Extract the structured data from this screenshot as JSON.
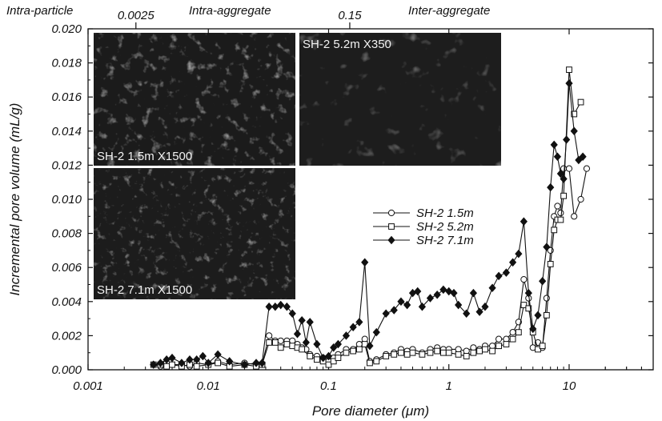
{
  "chart_data": {
    "type": "line",
    "x_scale": "log",
    "xlabel": "Pore diameter (μm)",
    "ylabel": "Incremental pore volume (mL/g)",
    "xlim": [
      0.001,
      50
    ],
    "ylim": [
      0,
      0.02
    ],
    "x_ticks": [
      0.001,
      0.01,
      0.1,
      1,
      10
    ],
    "x_tick_labels": [
      "0.001",
      "0.01",
      "0.1",
      "1",
      "10"
    ],
    "y_ticks": [
      0,
      0.002,
      0.004,
      0.006,
      0.008,
      0.01,
      0.012,
      0.014,
      0.016,
      0.018,
      0.02
    ],
    "y_tick_labels": [
      "0.000",
      "0.002",
      "0.004",
      "0.006",
      "0.008",
      "0.010",
      "0.012",
      "0.014",
      "0.016",
      "0.018",
      "0.020"
    ],
    "grid": false,
    "legend_position": "center-right",
    "top_axis": {
      "ticks": [
        0.0025,
        0.15
      ],
      "tick_labels": [
        "0.0025",
        "0.15"
      ],
      "regions": [
        "Intra-particle",
        "Intra-aggregate",
        "Inter-aggregate"
      ]
    },
    "insets": [
      {
        "label": "SH-2 1.5m X1500"
      },
      {
        "label": "SH-2 5.2m X350"
      },
      {
        "label": "SH-2 7.1m X1500"
      }
    ],
    "series": [
      {
        "name": "SH-2 1.5m",
        "marker": "open-circle",
        "points": [
          [
            0.0035,
            0.0003
          ],
          [
            0.004,
            0.0002
          ],
          [
            0.0045,
            0.0004
          ],
          [
            0.005,
            0.0003
          ],
          [
            0.006,
            0.0003
          ],
          [
            0.007,
            0.0002
          ],
          [
            0.008,
            0.0004
          ],
          [
            0.01,
            0.0003
          ],
          [
            0.012,
            0.0005
          ],
          [
            0.015,
            0.0003
          ],
          [
            0.02,
            0.0004
          ],
          [
            0.025,
            0.0003
          ],
          [
            0.028,
            0.0003
          ],
          [
            0.032,
            0.002
          ],
          [
            0.036,
            0.0017
          ],
          [
            0.04,
            0.0017
          ],
          [
            0.045,
            0.0017
          ],
          [
            0.05,
            0.0017
          ],
          [
            0.055,
            0.0015
          ],
          [
            0.06,
            0.0013
          ],
          [
            0.065,
            0.0012
          ],
          [
            0.07,
            0.0009
          ],
          [
            0.08,
            0.0008
          ],
          [
            0.09,
            0.0007
          ],
          [
            0.1,
            0.0005
          ],
          [
            0.11,
            0.0007
          ],
          [
            0.12,
            0.0009
          ],
          [
            0.14,
            0.0012
          ],
          [
            0.16,
            0.0012
          ],
          [
            0.18,
            0.0015
          ],
          [
            0.2,
            0.0018
          ],
          [
            0.22,
            0.0005
          ],
          [
            0.25,
            0.0006
          ],
          [
            0.3,
            0.0009
          ],
          [
            0.35,
            0.001
          ],
          [
            0.4,
            0.0012
          ],
          [
            0.45,
            0.0011
          ],
          [
            0.5,
            0.0012
          ],
          [
            0.6,
            0.001
          ],
          [
            0.7,
            0.0012
          ],
          [
            0.8,
            0.0013
          ],
          [
            0.9,
            0.0012
          ],
          [
            1.0,
            0.0012
          ],
          [
            1.2,
            0.0012
          ],
          [
            1.4,
            0.0011
          ],
          [
            1.6,
            0.0013
          ],
          [
            1.8,
            0.0012
          ],
          [
            2.0,
            0.0014
          ],
          [
            2.3,
            0.0014
          ],
          [
            2.6,
            0.0018
          ],
          [
            3.0,
            0.0018
          ],
          [
            3.4,
            0.0022
          ],
          [
            3.8,
            0.0028
          ],
          [
            4.2,
            0.0053
          ],
          [
            4.6,
            0.0042
          ],
          [
            5.0,
            0.0013
          ],
          [
            5.5,
            0.0016
          ],
          [
            6.0,
            0.0013
          ],
          [
            6.5,
            0.0042
          ],
          [
            7.0,
            0.007
          ],
          [
            7.5,
            0.009
          ],
          [
            8.0,
            0.0096
          ],
          [
            8.5,
            0.0092
          ],
          [
            9.0,
            0.0118
          ],
          [
            10.0,
            0.0118
          ],
          [
            11.0,
            0.009
          ],
          [
            12.5,
            0.01
          ],
          [
            14.0,
            0.0118
          ]
        ]
      },
      {
        "name": "SH-2 5.2m",
        "marker": "open-square",
        "points": [
          [
            0.0035,
            0.0003
          ],
          [
            0.004,
            0.0003
          ],
          [
            0.0045,
            0.0002
          ],
          [
            0.005,
            0.0003
          ],
          [
            0.006,
            0.0002
          ],
          [
            0.007,
            0.0003
          ],
          [
            0.008,
            0.0002
          ],
          [
            0.01,
            0.0003
          ],
          [
            0.012,
            0.0004
          ],
          [
            0.015,
            0.0002
          ],
          [
            0.02,
            0.0003
          ],
          [
            0.025,
            0.0002
          ],
          [
            0.028,
            0.0003
          ],
          [
            0.032,
            0.0016
          ],
          [
            0.036,
            0.0016
          ],
          [
            0.04,
            0.0013
          ],
          [
            0.045,
            0.0015
          ],
          [
            0.05,
            0.0014
          ],
          [
            0.055,
            0.0013
          ],
          [
            0.06,
            0.0012
          ],
          [
            0.07,
            0.0008
          ],
          [
            0.08,
            0.0006
          ],
          [
            0.09,
            0.0005
          ],
          [
            0.1,
            0.0003
          ],
          [
            0.11,
            0.0005
          ],
          [
            0.12,
            0.0007
          ],
          [
            0.14,
            0.001
          ],
          [
            0.16,
            0.0011
          ],
          [
            0.18,
            0.0012
          ],
          [
            0.2,
            0.0015
          ],
          [
            0.22,
            0.0004
          ],
          [
            0.25,
            0.0005
          ],
          [
            0.3,
            0.0008
          ],
          [
            0.35,
            0.0009
          ],
          [
            0.4,
            0.001
          ],
          [
            0.45,
            0.0009
          ],
          [
            0.5,
            0.001
          ],
          [
            0.6,
            0.0009
          ],
          [
            0.7,
            0.001
          ],
          [
            0.8,
            0.0011
          ],
          [
            0.9,
            0.001
          ],
          [
            1.0,
            0.001
          ],
          [
            1.2,
            0.0009
          ],
          [
            1.4,
            0.0008
          ],
          [
            1.6,
            0.001
          ],
          [
            1.8,
            0.0011
          ],
          [
            2.0,
            0.0012
          ],
          [
            2.3,
            0.0011
          ],
          [
            2.6,
            0.0014
          ],
          [
            3.0,
            0.0015
          ],
          [
            3.4,
            0.0018
          ],
          [
            3.8,
            0.0022
          ],
          [
            4.2,
            0.0038
          ],
          [
            4.6,
            0.0036
          ],
          [
            5.0,
            0.0022
          ],
          [
            5.5,
            0.0012
          ],
          [
            6.0,
            0.0014
          ],
          [
            6.5,
            0.0032
          ],
          [
            7.0,
            0.0062
          ],
          [
            7.5,
            0.0082
          ],
          [
            8.0,
            0.0088
          ],
          [
            8.5,
            0.0088
          ],
          [
            9.0,
            0.0102
          ],
          [
            10.0,
            0.0176
          ],
          [
            11.0,
            0.015
          ],
          [
            12.5,
            0.0157
          ]
        ]
      },
      {
        "name": "SH-2 7.1m",
        "marker": "filled-diamond",
        "points": [
          [
            0.0035,
            0.0003
          ],
          [
            0.004,
            0.0004
          ],
          [
            0.0045,
            0.0006
          ],
          [
            0.005,
            0.0007
          ],
          [
            0.006,
            0.0004
          ],
          [
            0.007,
            0.0006
          ],
          [
            0.008,
            0.0006
          ],
          [
            0.009,
            0.0008
          ],
          [
            0.01,
            0.0004
          ],
          [
            0.012,
            0.0009
          ],
          [
            0.015,
            0.0005
          ],
          [
            0.02,
            0.0003
          ],
          [
            0.025,
            0.0004
          ],
          [
            0.028,
            0.0004
          ],
          [
            0.032,
            0.0037
          ],
          [
            0.036,
            0.0037
          ],
          [
            0.04,
            0.0038
          ],
          [
            0.045,
            0.0037
          ],
          [
            0.05,
            0.0033
          ],
          [
            0.055,
            0.0021
          ],
          [
            0.06,
            0.0029
          ],
          [
            0.065,
            0.0016
          ],
          [
            0.07,
            0.0028
          ],
          [
            0.08,
            0.0015
          ],
          [
            0.09,
            0.0007
          ],
          [
            0.1,
            0.0008
          ],
          [
            0.11,
            0.0013
          ],
          [
            0.12,
            0.0015
          ],
          [
            0.14,
            0.002
          ],
          [
            0.16,
            0.0025
          ],
          [
            0.18,
            0.0028
          ],
          [
            0.2,
            0.0063
          ],
          [
            0.22,
            0.0014
          ],
          [
            0.25,
            0.0022
          ],
          [
            0.3,
            0.0033
          ],
          [
            0.35,
            0.0035
          ],
          [
            0.4,
            0.004
          ],
          [
            0.45,
            0.0038
          ],
          [
            0.5,
            0.0045
          ],
          [
            0.55,
            0.0046
          ],
          [
            0.6,
            0.0037
          ],
          [
            0.7,
            0.0042
          ],
          [
            0.8,
            0.0044
          ],
          [
            0.9,
            0.0047
          ],
          [
            1.0,
            0.0046
          ],
          [
            1.1,
            0.0045
          ],
          [
            1.2,
            0.0038
          ],
          [
            1.4,
            0.0033
          ],
          [
            1.6,
            0.0045
          ],
          [
            1.8,
            0.0034
          ],
          [
            2.0,
            0.0037
          ],
          [
            2.3,
            0.0048
          ],
          [
            2.6,
            0.0055
          ],
          [
            3.0,
            0.0057
          ],
          [
            3.4,
            0.0063
          ],
          [
            3.8,
            0.0068
          ],
          [
            4.2,
            0.0087
          ],
          [
            4.6,
            0.0045
          ],
          [
            5.0,
            0.0024
          ],
          [
            5.5,
            0.0032
          ],
          [
            6.0,
            0.0052
          ],
          [
            6.5,
            0.0072
          ],
          [
            7.0,
            0.0107
          ],
          [
            7.5,
            0.0132
          ],
          [
            8.0,
            0.0125
          ],
          [
            8.5,
            0.0115
          ],
          [
            9.0,
            0.0112
          ],
          [
            9.5,
            0.0135
          ],
          [
            10.0,
            0.0168
          ],
          [
            11.0,
            0.014
          ],
          [
            12.0,
            0.0123
          ],
          [
            13.0,
            0.0125
          ]
        ]
      }
    ]
  }
}
